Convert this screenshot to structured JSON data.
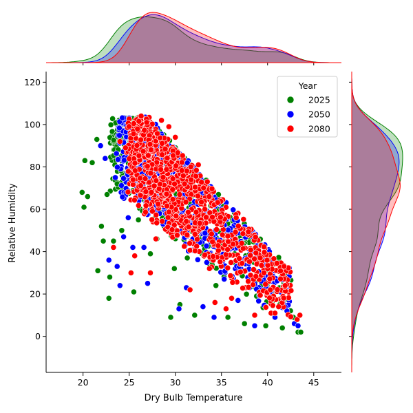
{
  "chart_data": {
    "type": "scatter",
    "subtype": "jointplot",
    "title": "",
    "xlabel": "Dry Bulb Temperature",
    "ylabel": "Relative Humidity",
    "xlim": [
      16,
      48
    ],
    "ylim": [
      -17,
      125
    ],
    "xticks": [
      20,
      25,
      30,
      35,
      40,
      45
    ],
    "yticks": [
      0,
      20,
      40,
      60,
      80,
      100,
      120
    ],
    "grid": false,
    "legend": {
      "title": "Year",
      "placement": "top-right"
    },
    "series": [
      {
        "name": "2025",
        "color": "#008000",
        "points": [
          [
            20.1,
            61
          ],
          [
            19.9,
            68
          ],
          [
            20.5,
            66
          ],
          [
            20.2,
            83
          ],
          [
            21.0,
            82
          ],
          [
            21.5,
            93
          ],
          [
            21.6,
            31
          ],
          [
            22.0,
            52
          ],
          [
            22.2,
            45
          ],
          [
            22.6,
            67
          ],
          [
            22.8,
            18
          ],
          [
            22.9,
            28
          ],
          [
            23.3,
            45
          ],
          [
            23.7,
            72
          ],
          [
            24.0,
            99
          ],
          [
            24.2,
            50
          ],
          [
            25.5,
            21
          ],
          [
            26.0,
            55
          ],
          [
            26.8,
            60
          ],
          [
            27.3,
            39
          ],
          [
            28.0,
            46
          ],
          [
            28.6,
            64
          ],
          [
            29.5,
            9
          ],
          [
            29.9,
            32
          ],
          [
            30.5,
            15
          ],
          [
            31.3,
            37
          ],
          [
            32.1,
            10
          ],
          [
            33.4,
            55
          ],
          [
            34.4,
            24
          ],
          [
            35.7,
            9
          ],
          [
            36.7,
            33
          ],
          [
            37.5,
            6
          ],
          [
            38.8,
            19
          ],
          [
            39.8,
            5
          ],
          [
            40.6,
            17
          ],
          [
            41.6,
            4
          ],
          [
            42.8,
            9
          ],
          [
            43.3,
            2
          ],
          [
            43.6,
            2
          ]
        ]
      },
      {
        "name": "2050",
        "color": "#0000ff",
        "points": [
          [
            21.9,
            90
          ],
          [
            22.4,
            84
          ],
          [
            22.8,
            36
          ],
          [
            23.5,
            75
          ],
          [
            23.7,
            33
          ],
          [
            24.0,
            24
          ],
          [
            24.4,
            47
          ],
          [
            24.9,
            56
          ],
          [
            25.4,
            42
          ],
          [
            25.8,
            97
          ],
          [
            26.2,
            91
          ],
          [
            26.6,
            42
          ],
          [
            27.0,
            25
          ],
          [
            27.8,
            88
          ],
          [
            28.6,
            83
          ],
          [
            29.6,
            56
          ],
          [
            30.4,
            13
          ],
          [
            31.2,
            23
          ],
          [
            31.9,
            46
          ],
          [
            33.0,
            14
          ],
          [
            33.8,
            39
          ],
          [
            34.2,
            9
          ],
          [
            35.3,
            27
          ],
          [
            36.0,
            43
          ],
          [
            36.8,
            17
          ],
          [
            37.8,
            37
          ],
          [
            38.6,
            5
          ],
          [
            39.3,
            26
          ],
          [
            40.2,
            40
          ],
          [
            40.8,
            9
          ],
          [
            41.4,
            21
          ],
          [
            42.1,
            12
          ],
          [
            42.9,
            6
          ],
          [
            43.3,
            5
          ]
        ]
      },
      {
        "name": "2080",
        "color": "#ff0000",
        "points": [
          [
            23.3,
            42
          ],
          [
            24.0,
            92
          ],
          [
            24.6,
            89
          ],
          [
            25.2,
            30
          ],
          [
            25.6,
            38
          ],
          [
            26.3,
            104
          ],
          [
            26.9,
            101
          ],
          [
            27.3,
            30
          ],
          [
            27.9,
            46
          ],
          [
            28.5,
            102
          ],
          [
            29.3,
            99
          ],
          [
            30.0,
            94
          ],
          [
            31.0,
            72
          ],
          [
            31.6,
            22
          ],
          [
            32.5,
            81
          ],
          [
            33.2,
            60
          ],
          [
            33.7,
            32
          ],
          [
            34.3,
            16
          ],
          [
            35.1,
            48
          ],
          [
            35.5,
            13
          ],
          [
            36.1,
            18
          ],
          [
            36.6,
            56
          ],
          [
            37.2,
            44
          ],
          [
            37.9,
            26
          ],
          [
            38.6,
            10
          ],
          [
            39.2,
            37
          ],
          [
            39.6,
            30
          ],
          [
            40.3,
            22
          ],
          [
            41.2,
            14
          ],
          [
            41.9,
            24
          ],
          [
            43.2,
            8
          ],
          [
            43.5,
            10
          ]
        ]
      }
    ]
  }
}
